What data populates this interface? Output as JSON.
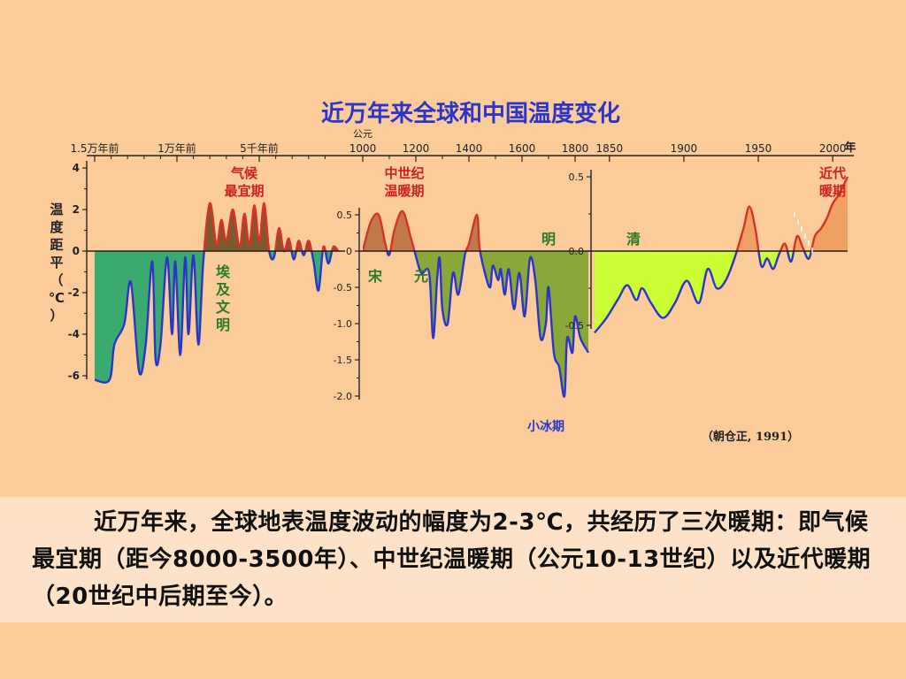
{
  "colors": {
    "warm": "#d9322a",
    "cold": "#2b36c8",
    "panel1_cold_fill": "#3aaa6e",
    "panel1_warm_fill": "#7a5a2e",
    "panel2_warm_fill": "#c07a4a",
    "panel2_cold_fill": "#8aa83a",
    "panel3_cold_fill": "#ccff33",
    "panel3_warm_fill": "#f0a060",
    "title": "#2b36c8",
    "label_red": "#cc2222",
    "label_green": "#2a7a2a"
  },
  "chart_data": [
    {
      "type": "area",
      "name": "panel-1",
      "title": "近万年来全球和中国温度变化",
      "top_axis_label": "公元",
      "year_unit": "年",
      "x_ticks": [
        "1.5万年前",
        "1万年前",
        "5千年前"
      ],
      "ylabel": "温度距平（℃）",
      "y_ticks": [
        "4",
        "2",
        "0",
        "-2",
        "-4",
        "-6"
      ],
      "ylim": [
        -7,
        4
      ],
      "x_range_years_bp": [
        15000,
        0
      ],
      "series": [
        {
          "x": [
            15000,
            14100,
            13800,
            13200,
            12800,
            12300,
            11900,
            11500,
            11300,
            11000,
            10600,
            10300,
            10100,
            9800,
            9500,
            9300,
            9000,
            8700,
            8400,
            8000,
            7600,
            7300,
            7000,
            6600,
            6200,
            5900,
            5600,
            5300,
            5000,
            4700,
            4400,
            4100,
            3800,
            3500,
            3200,
            2900,
            2600,
            2300,
            2000,
            1700,
            1400,
            1100,
            800,
            500,
            200
          ],
          "y": [
            -6.2,
            -6.2,
            -4.5,
            -3.5,
            -1.5,
            -5.8,
            -4.5,
            -0.5,
            -5.2,
            -4.5,
            -0.3,
            -4.0,
            -0.5,
            -5.0,
            -0.3,
            -4.0,
            -0.2,
            -4.5,
            -0.5,
            2.3,
            0.3,
            1.5,
            0.5,
            2.0,
            0.2,
            1.8,
            0.3,
            2.2,
            0.5,
            2.3,
            0.0,
            -0.3,
            1.1,
            0.0,
            0.6,
            -0.4,
            0.5,
            -0.2,
            0.5,
            -0.5,
            -1.9,
            0.2,
            -0.6,
            0.2,
            0.0
          ]
        }
      ]
    },
    {
      "type": "area",
      "name": "panel-2",
      "x_ticks": [
        "1000",
        "1200",
        "1400",
        "1600",
        "1800"
      ],
      "y_ticks": [
        "0.5",
        "0",
        "-0.5",
        "-1.0",
        "-1.5",
        "-2.0"
      ],
      "ylim": [
        -2.1,
        0.7
      ],
      "x_range": [
        1000,
        1850
      ],
      "series": [
        {
          "x": [
            1000,
            1030,
            1060,
            1085,
            1100,
            1120,
            1150,
            1180,
            1195,
            1220,
            1250,
            1265,
            1280,
            1290,
            1300,
            1320,
            1340,
            1360,
            1385,
            1400,
            1430,
            1440,
            1460,
            1480,
            1490,
            1510,
            1520,
            1535,
            1550,
            1570,
            1590,
            1610,
            1630,
            1650,
            1670,
            1690,
            1700,
            1720,
            1740,
            1760,
            1770,
            1790,
            1800,
            1820,
            1850
          ],
          "y": [
            0.0,
            0.4,
            0.5,
            0.1,
            -0.05,
            0.3,
            0.55,
            0.2,
            0.0,
            -0.3,
            -0.3,
            -1.2,
            -0.4,
            -0.1,
            -0.8,
            -1.0,
            -0.3,
            -0.6,
            -0.05,
            0.1,
            0.5,
            0.05,
            -0.3,
            -0.5,
            -0.2,
            -0.4,
            -0.25,
            -0.6,
            -0.25,
            -0.8,
            -0.3,
            -0.9,
            -0.1,
            -0.4,
            -1.2,
            -1.0,
            -0.5,
            -1.4,
            -1.6,
            -2.0,
            -1.2,
            -1.4,
            -0.9,
            -1.2,
            -1.4
          ]
        }
      ]
    },
    {
      "type": "area",
      "name": "panel-3",
      "x_ticks": [
        "1850",
        "1900",
        "1950",
        "2000"
      ],
      "y_ticks": [
        "0.5",
        "0.0",
        "-0.5"
      ],
      "ylim": [
        -0.65,
        0.6
      ],
      "x_range": [
        1840,
        2010
      ],
      "series": [
        {
          "x": [
            1840,
            1848,
            1856,
            1862,
            1868,
            1872,
            1878,
            1886,
            1894,
            1902,
            1910,
            1916,
            1922,
            1928,
            1934,
            1940,
            1944,
            1948,
            1952,
            1956,
            1960,
            1964,
            1968,
            1972,
            1976,
            1980,
            1984,
            1988,
            1992,
            1996,
            2000,
            2004,
            2010
          ],
          "y": [
            -0.55,
            -0.45,
            -0.32,
            -0.23,
            -0.33,
            -0.25,
            -0.35,
            -0.45,
            -0.35,
            -0.2,
            -0.35,
            -0.12,
            -0.25,
            -0.2,
            -0.05,
            0.15,
            0.3,
            0.15,
            -0.1,
            -0.05,
            -0.12,
            -0.02,
            0.05,
            -0.07,
            0.1,
            0.02,
            -0.05,
            0.1,
            0.15,
            0.22,
            0.32,
            0.38,
            0.5
          ]
        }
      ]
    }
  ],
  "labels": {
    "qihou_zuiyi": [
      "气候",
      "最宜期"
    ],
    "aiji_wenming": [
      "埃",
      "及",
      "文",
      "明"
    ],
    "zhongshiji": [
      "中世纪",
      "温暖期"
    ],
    "song": "宋",
    "yuan": "元",
    "ming": "明",
    "qing": "清",
    "xiao_bingqi": "小冰期",
    "jindai": [
      "近代",
      "暖期"
    ],
    "citation": "（朝仓正, 1991）"
  },
  "caption": "近万年来，全球地表温度波动的幅度为2-3℃，共经历了三次暖期：即气候最宜期（距今8000-3500年）、中世纪温暖期（公元10-13世纪）以及近代暖期（20世纪中后期至今）。"
}
